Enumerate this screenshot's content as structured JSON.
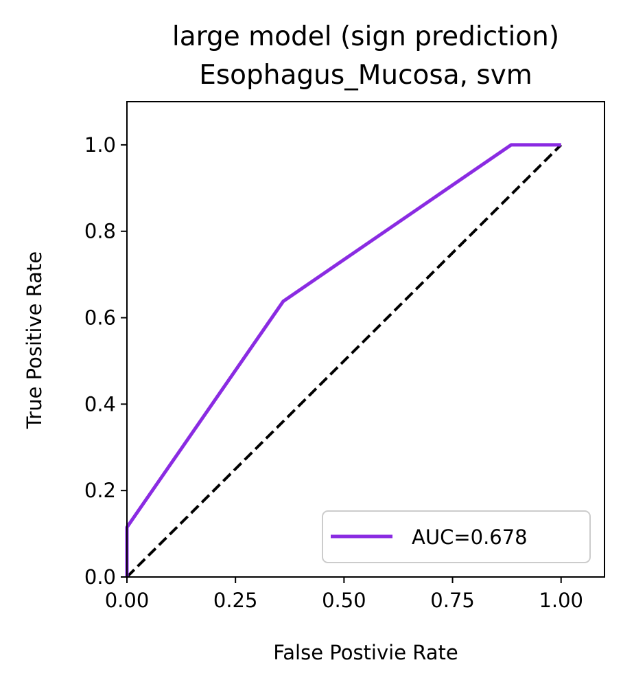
{
  "chart_data": {
    "type": "line",
    "title_lines": [
      "large model (sign prediction)",
      "Esophagus_Mucosa, svm"
    ],
    "xlabel": "False Postivie Rate",
    "ylabel": "True Positive Rate",
    "xlim": [
      0.0,
      1.1
    ],
    "ylim": [
      0.0,
      1.1
    ],
    "xticks": [
      0.0,
      0.25,
      0.5,
      0.75,
      1.0
    ],
    "xtick_labels": [
      "0.00",
      "0.25",
      "0.50",
      "0.75",
      "1.00"
    ],
    "yticks": [
      0.0,
      0.2,
      0.4,
      0.6,
      0.8,
      1.0
    ],
    "ytick_labels": [
      "0.0",
      "0.2",
      "0.4",
      "0.6",
      "0.8",
      "1.0"
    ],
    "grid": false,
    "legend_position": "lower-right",
    "series": [
      {
        "name": "AUC=0.678",
        "color": "#8A2BE2",
        "style": "solid",
        "x": [
          0.0,
          0.0,
          0.36,
          0.885,
          1.0
        ],
        "y": [
          0.0,
          0.115,
          0.638,
          1.0,
          1.0
        ]
      }
    ],
    "reference_line": {
      "color": "#000000",
      "style": "dashed",
      "x": [
        0.0,
        1.0
      ],
      "y": [
        0.0,
        1.0
      ]
    }
  }
}
